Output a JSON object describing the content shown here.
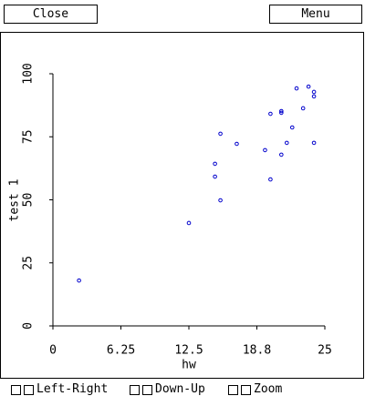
{
  "buttons": [
    "Close",
    "Menu"
  ],
  "chart_data": {
    "type": "scatter",
    "xlabel": "hw",
    "ylabel": "test 1",
    "x": [
      2.4,
      12.5,
      14.9,
      14.9,
      15.4,
      15.4,
      16.9,
      19.5,
      20.0,
      20.0,
      21.0,
      21.0,
      21.0,
      21.5,
      22.0,
      22.4,
      23.0,
      23.5,
      24.0,
      24.0,
      24.0
    ],
    "series": [
      {
        "name": "test 1",
        "color": "#0000cc",
        "values": [
          18,
          40.8,
          64.3,
          59.2,
          76.2,
          49.8,
          72.2,
          69.7,
          84.1,
          58.1,
          85.2,
          84.5,
          67.9,
          72.6,
          78.7,
          94.2,
          86.3,
          94.9,
          92.8,
          91,
          72.6
        ]
      }
    ],
    "xlim": [
      0,
      25
    ],
    "xticks": [
      0,
      6.25,
      12.5,
      {
        "value": 18.75,
        "label": "18.8"
      },
      25
    ],
    "ylim": [
      0,
      100
    ],
    "yticks": [
      0,
      25,
      50,
      75,
      100
    ]
  },
  "controls": [
    "Left-Right",
    "Down-Up",
    "Zoom"
  ]
}
